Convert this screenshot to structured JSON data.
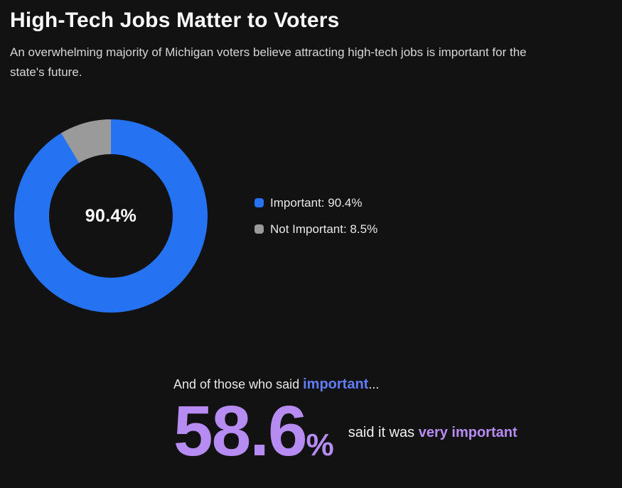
{
  "header": {
    "title": "High-Tech Jobs Matter to Voters",
    "subtitle": "An overwhelming majority of Michigan voters believe attracting high-tech jobs is important for the state's future."
  },
  "chart_data": {
    "type": "pie",
    "variant": "donut",
    "title": "High-Tech Jobs Matter to Voters",
    "center_label": "90.4%",
    "slices": [
      {
        "label": "Important",
        "value": 90.4,
        "color": "#2573f2"
      },
      {
        "label": "Not Important",
        "value": 8.5,
        "color": "#9a9a9a"
      }
    ],
    "legend": [
      {
        "label": "Important: 90.4%",
        "color": "#2573f2"
      },
      {
        "label": "Not Important: 8.5%",
        "color": "#9a9a9a"
      }
    ],
    "legend_position": "right",
    "start_angle_deg": 0,
    "direction": "clockwise"
  },
  "callout": {
    "lead_prefix": "And of those who said ",
    "lead_highlight": "important",
    "lead_suffix": "...",
    "big_value": "58.6",
    "big_unit": "%",
    "desc_prefix": "said it was ",
    "desc_highlight": "very important"
  },
  "colors": {
    "background": "#121212",
    "accent_blue": "#2573f2",
    "accent_gray": "#9a9a9a",
    "accent_purple": "#b78cf2",
    "highlight_blue": "#5f7cfa"
  }
}
